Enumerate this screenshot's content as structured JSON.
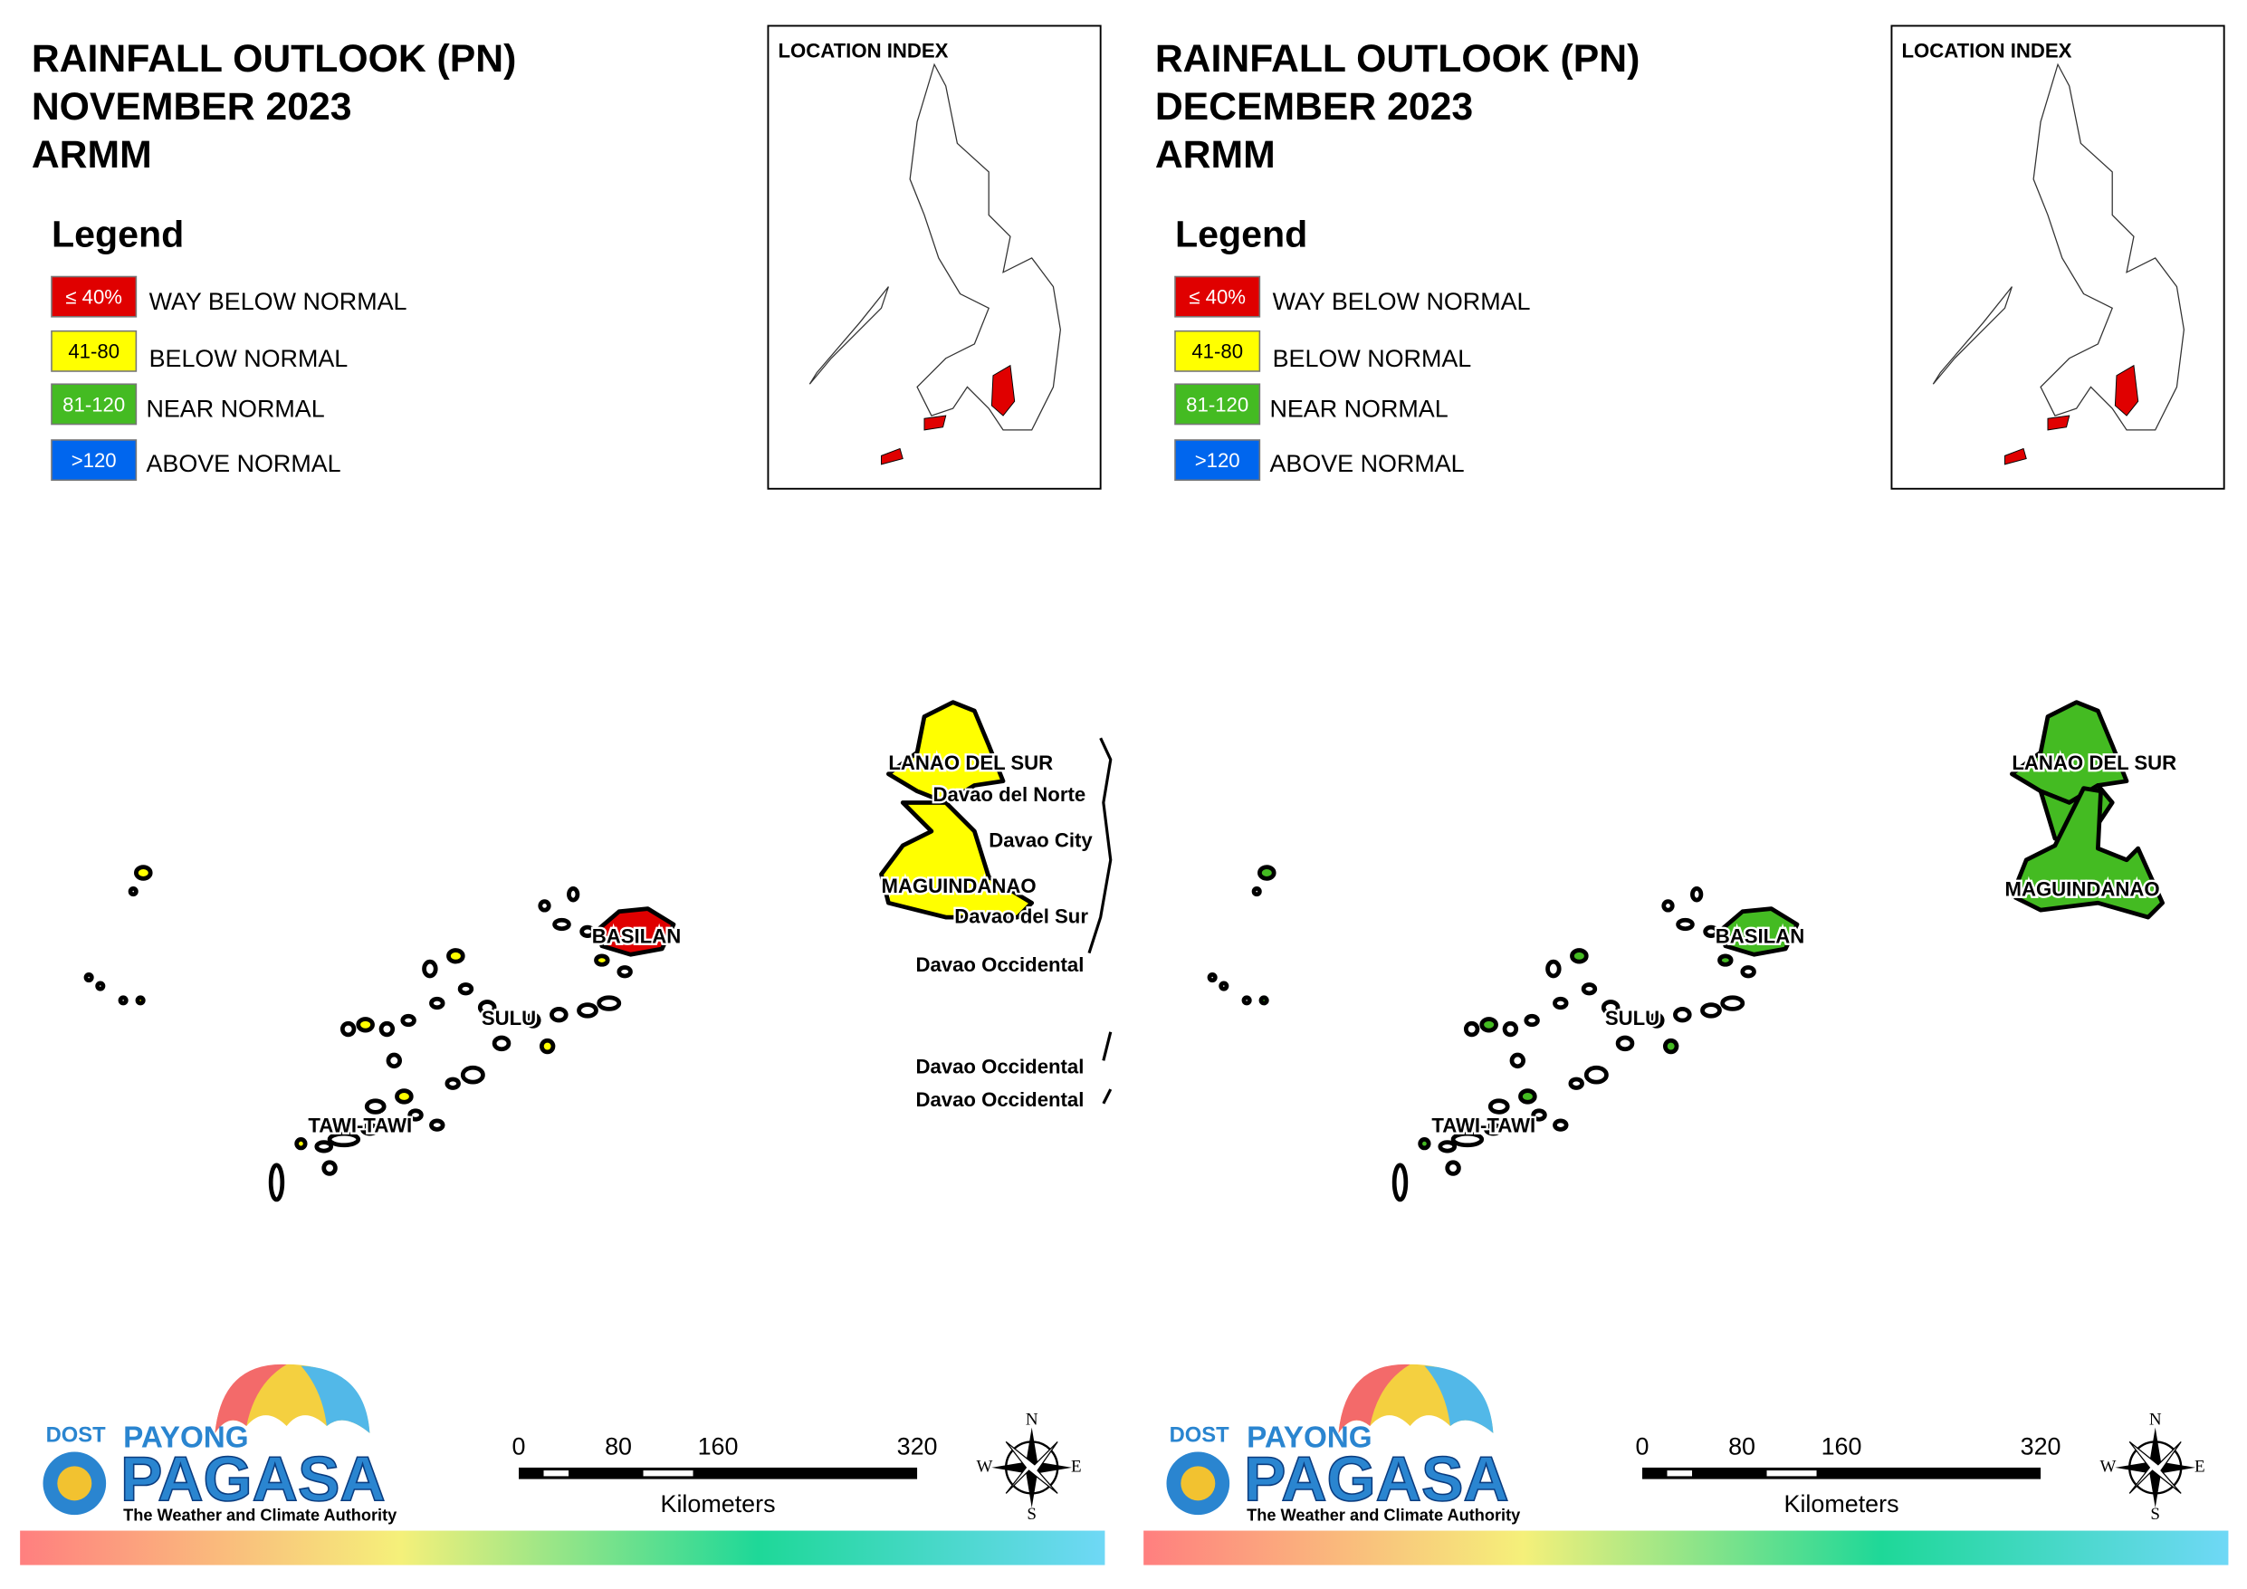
{
  "panels": [
    {
      "title": [
        "RAINFALL OUTLOOK (PN)",
        "NOVEMBER 2023",
        "ARMM"
      ],
      "legend": {
        "title": "Legend",
        "items": [
          {
            "range": "≤ 40%",
            "label": "WAY BELOW NORMAL",
            "color": "#e00000"
          },
          {
            "range": "41-80",
            "label": "BELOW NORMAL",
            "color": "#ffff00"
          },
          {
            "range": "81-120",
            "label": "NEAR NORMAL",
            "color": "#44bb22"
          },
          {
            "range": ">120",
            "label": "ABOVE NORMAL",
            "color": "#0066ee"
          }
        ]
      },
      "location_index": "LOCATION INDEX",
      "map_labels": [
        "LANAO DEL SUR",
        "Davao del Norte",
        "Davao City",
        "MAGUINDANAO",
        "Davao del Sur",
        "Davao Occidental",
        "BASILAN",
        "SULU",
        "Davao Occidental",
        "Davao Occidental",
        "TAWI-TAWI"
      ],
      "logo": {
        "dost": "DOST",
        "payong": "PAYONG",
        "pagasa": "PAGASA",
        "tagline": "The Weather and Climate Authority"
      },
      "scale": {
        "ticks": [
          0,
          80,
          160,
          320
        ],
        "unit": "Kilometers"
      },
      "compass": {
        "n": "N",
        "s": "S",
        "e": "E",
        "w": "W"
      }
    },
    {
      "title": [
        "RAINFALL OUTLOOK (PN)",
        "DECEMBER 2023",
        "ARMM"
      ],
      "legend": {
        "title": "Legend",
        "items": [
          {
            "range": "≤ 40%",
            "label": "WAY BELOW NORMAL",
            "color": "#e00000"
          },
          {
            "range": "41-80",
            "label": "BELOW NORMAL",
            "color": "#ffff00"
          },
          {
            "range": "81-120",
            "label": "NEAR NORMAL",
            "color": "#44bb22"
          },
          {
            "range": ">120",
            "label": "ABOVE NORMAL",
            "color": "#0066ee"
          }
        ]
      },
      "location_index": "LOCATION INDEX",
      "map_labels": [
        "LANAO DEL SUR",
        "MAGUINDANAO",
        "BASILAN",
        "SULU",
        "TAWI-TAWI"
      ],
      "logo": {
        "dost": "DOST",
        "payong": "PAYONG",
        "pagasa": "PAGASA",
        "tagline": "The Weather and Climate Authority"
      },
      "scale": {
        "ticks": [
          0,
          80,
          160,
          320
        ],
        "unit": "Kilometers"
      },
      "compass": {
        "n": "N",
        "s": "S",
        "e": "E",
        "w": "W"
      }
    }
  ]
}
